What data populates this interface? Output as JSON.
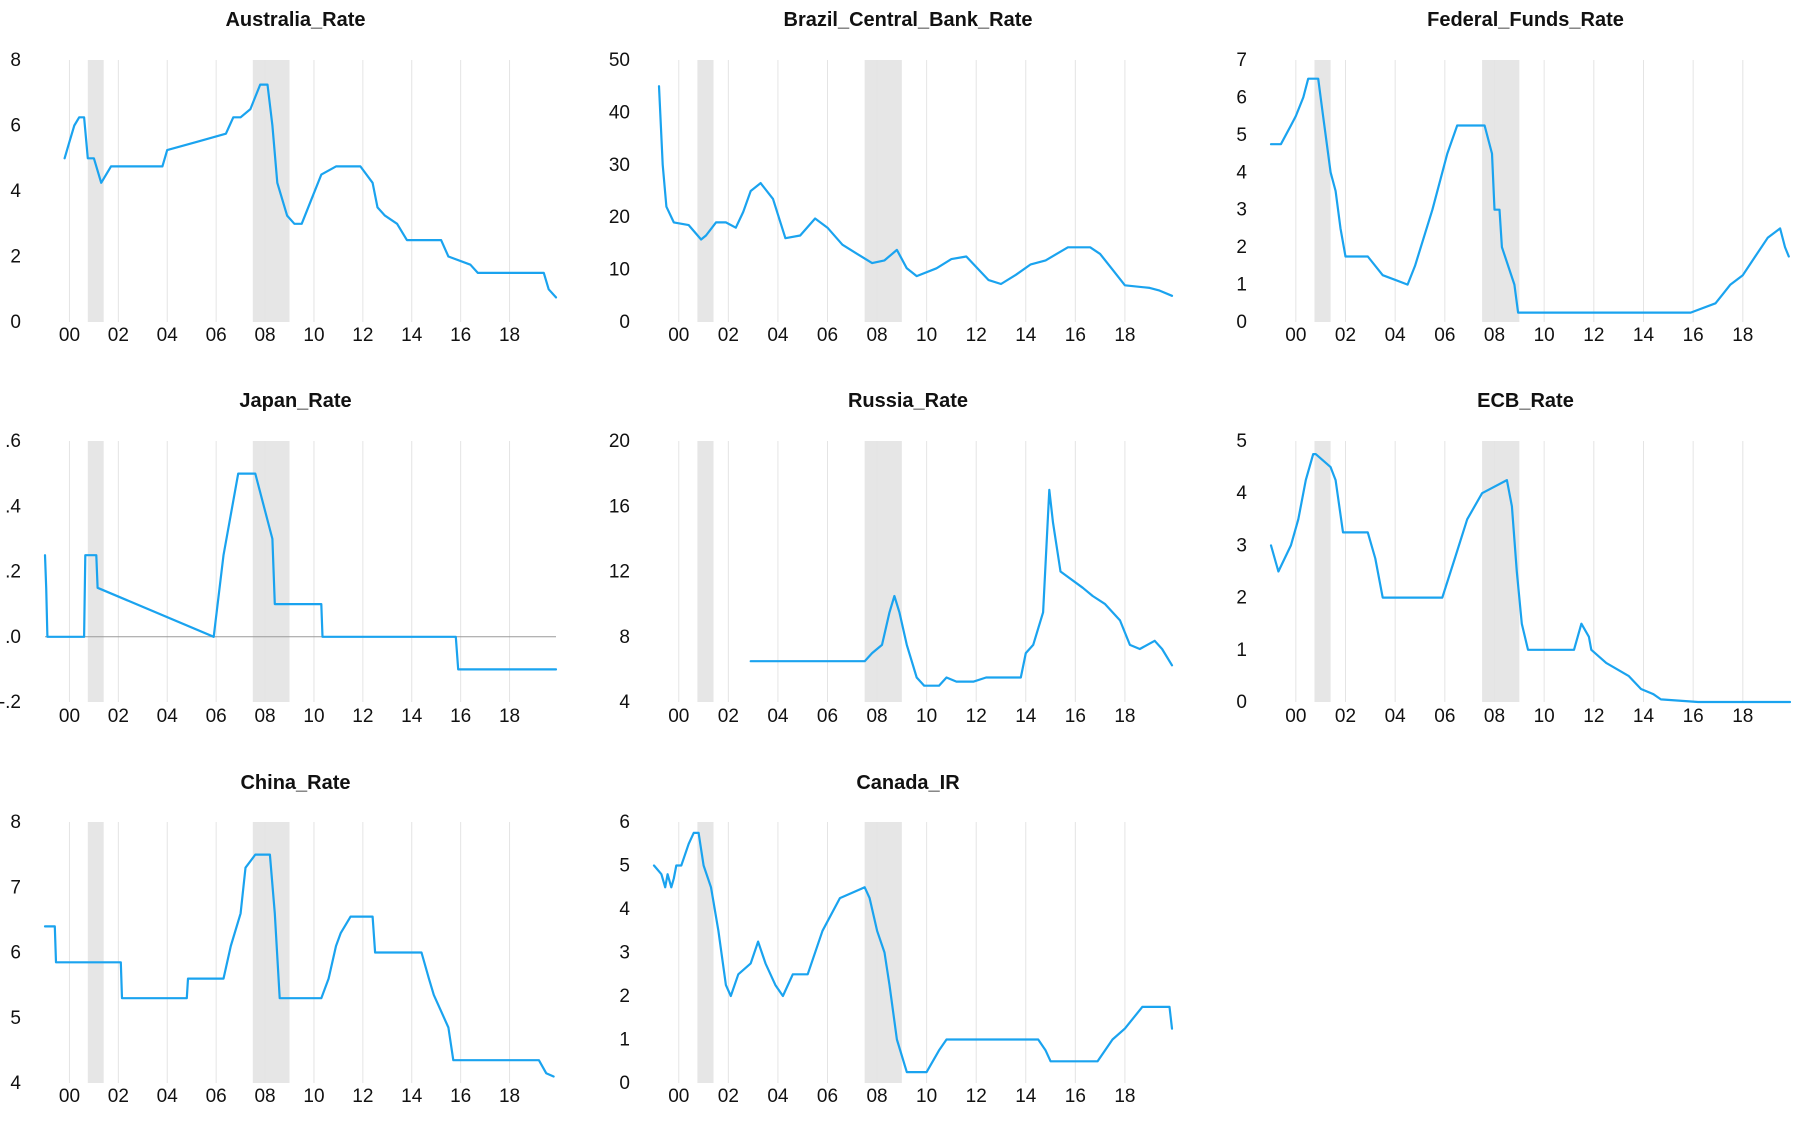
{
  "colors": {
    "series": "#1aa3ef",
    "recession": "#e6e6e6",
    "grid": "#e4e4e4",
    "zero_line": "#9a9a9a"
  },
  "chart_data": [
    {
      "type": "line",
      "title": "Australia_Rate",
      "xlim": [
        1999.0,
        2019.9
      ],
      "ylim": [
        0,
        8
      ],
      "yticks": [
        0,
        2,
        4,
        6,
        8
      ],
      "ytick_labels": [
        "0",
        "2",
        "4",
        "6",
        "8"
      ],
      "xticks": [
        2000,
        2002,
        2004,
        2006,
        2008,
        2010,
        2012,
        2014,
        2016,
        2018
      ],
      "xtick_labels": [
        "00",
        "02",
        "04",
        "06",
        "08",
        "10",
        "12",
        "14",
        "16",
        "18"
      ],
      "recessions": [
        [
          2000.75,
          2001.4
        ],
        [
          2007.5,
          2009.0
        ]
      ],
      "x": [
        1999.8,
        2000.0,
        2000.2,
        2000.4,
        2000.6,
        2000.75,
        2001.0,
        2001.3,
        2001.7,
        2002.4,
        2003.8,
        2004.0,
        2005.2,
        2006.4,
        2006.7,
        2007.0,
        2007.4,
        2007.8,
        2008.1,
        2008.3,
        2008.5,
        2008.9,
        2009.2,
        2009.5,
        2009.9,
        2010.3,
        2010.9,
        2011.9,
        2012.4,
        2012.6,
        2012.9,
        2013.4,
        2013.8,
        2015.2,
        2015.5,
        2016.4,
        2016.7,
        2019.4,
        2019.6,
        2019.9
      ],
      "values": [
        5.0,
        5.5,
        6.0,
        6.25,
        6.25,
        5.0,
        5.0,
        4.25,
        4.75,
        4.75,
        4.75,
        5.25,
        5.5,
        5.75,
        6.25,
        6.25,
        6.5,
        7.25,
        7.25,
        6.0,
        4.25,
        3.25,
        3.0,
        3.0,
        3.75,
        4.5,
        4.75,
        4.75,
        4.25,
        3.5,
        3.25,
        3.0,
        2.5,
        2.5,
        2.0,
        1.75,
        1.5,
        1.5,
        1.0,
        0.75
      ]
    },
    {
      "type": "line",
      "title": "Brazil_Central_Bank_Rate",
      "xlim": [
        1999.0,
        2019.9
      ],
      "ylim": [
        0,
        50
      ],
      "yticks": [
        0,
        10,
        20,
        30,
        40,
        50
      ],
      "ytick_labels": [
        "0",
        "10",
        "20",
        "30",
        "40",
        "50"
      ],
      "xticks": [
        2000,
        2002,
        2004,
        2006,
        2008,
        2010,
        2012,
        2014,
        2016,
        2018
      ],
      "xtick_labels": [
        "00",
        "02",
        "04",
        "06",
        "08",
        "10",
        "12",
        "14",
        "16",
        "18"
      ],
      "recessions": [
        [
          2000.75,
          2001.4
        ],
        [
          2007.5,
          2009.0
        ]
      ],
      "x": [
        1999.2,
        1999.35,
        1999.5,
        1999.8,
        2000.4,
        2000.9,
        2001.1,
        2001.5,
        2001.9,
        2002.3,
        2002.6,
        2002.9,
        2003.3,
        2003.8,
        2004.3,
        2004.9,
        2005.5,
        2006.0,
        2006.6,
        2007.2,
        2007.8,
        2008.3,
        2008.8,
        2009.2,
        2009.6,
        2010.4,
        2011.0,
        2011.6,
        2012.0,
        2012.5,
        2013.0,
        2013.6,
        2014.2,
        2014.8,
        2015.7,
        2016.6,
        2017.0,
        2017.5,
        2018.0,
        2019.0,
        2019.4,
        2019.9
      ],
      "values": [
        45.0,
        30.0,
        22.0,
        19.0,
        18.5,
        15.75,
        16.5,
        19.0,
        19.0,
        18.0,
        21.0,
        25.0,
        26.5,
        23.5,
        16.0,
        16.5,
        19.75,
        18.0,
        14.75,
        13.0,
        11.25,
        11.75,
        13.75,
        10.25,
        8.75,
        10.25,
        12.0,
        12.5,
        10.5,
        8.0,
        7.25,
        9.0,
        11.0,
        11.75,
        14.25,
        14.25,
        13.0,
        10.0,
        7.0,
        6.5,
        6.0,
        5.0
      ]
    },
    {
      "type": "line",
      "title": "Federal_Funds_Rate",
      "xlim": [
        1999.0,
        2019.9
      ],
      "ylim": [
        0,
        7
      ],
      "yticks": [
        0,
        1,
        2,
        3,
        4,
        5,
        6,
        7
      ],
      "ytick_labels": [
        "0",
        "1",
        "2",
        "3",
        "4",
        "5",
        "6",
        "7"
      ],
      "xticks": [
        2000,
        2002,
        2004,
        2006,
        2008,
        2010,
        2012,
        2014,
        2016,
        2018
      ],
      "xtick_labels": [
        "00",
        "02",
        "04",
        "06",
        "08",
        "10",
        "12",
        "14",
        "16",
        "18"
      ],
      "recessions": [
        [
          2000.75,
          2001.4
        ],
        [
          2007.5,
          2009.0
        ]
      ],
      "x": [
        1999.0,
        1999.4,
        1999.8,
        2000.0,
        2000.3,
        2000.5,
        2000.9,
        2001.1,
        2001.4,
        2001.6,
        2001.8,
        2002.0,
        2002.9,
        2003.5,
        2004.5,
        2004.8,
        2005.5,
        2006.1,
        2006.5,
        2007.6,
        2007.9,
        2008.0,
        2008.2,
        2008.3,
        2008.8,
        2008.95,
        2015.9,
        2016.9,
        2017.2,
        2017.5,
        2018.0,
        2018.5,
        2019.0,
        2019.5,
        2019.7,
        2019.85
      ],
      "values": [
        4.75,
        4.75,
        5.25,
        5.5,
        6.0,
        6.5,
        6.5,
        5.5,
        4.0,
        3.5,
        2.5,
        1.75,
        1.75,
        1.25,
        1.0,
        1.5,
        3.0,
        4.5,
        5.25,
        5.25,
        4.5,
        3.0,
        3.0,
        2.0,
        1.0,
        0.25,
        0.25,
        0.5,
        0.75,
        1.0,
        1.25,
        1.75,
        2.25,
        2.5,
        2.0,
        1.75
      ]
    },
    {
      "type": "line",
      "title": "Japan_Rate",
      "xlim": [
        1999.0,
        2019.9
      ],
      "ylim": [
        -0.2,
        0.6
      ],
      "yticks": [
        -0.2,
        0.0,
        0.2,
        0.4,
        0.6
      ],
      "ytick_labels": [
        "-.2",
        ".0",
        ".2",
        ".4",
        ".6"
      ],
      "xticks": [
        2000,
        2002,
        2004,
        2006,
        2008,
        2010,
        2012,
        2014,
        2016,
        2018
      ],
      "xtick_labels": [
        "00",
        "02",
        "04",
        "06",
        "08",
        "10",
        "12",
        "14",
        "16",
        "18"
      ],
      "recessions": [
        [
          2000.75,
          2001.4
        ],
        [
          2007.5,
          2009.0
        ]
      ],
      "zero_line": true,
      "x": [
        1999.0,
        1999.05,
        1999.1,
        2000.6,
        2000.65,
        2001.1,
        2001.15,
        2005.9,
        2006.3,
        2006.9,
        2007.6,
        2008.3,
        2008.4,
        2010.3,
        2010.35,
        2015.8,
        2015.9,
        2019.9
      ],
      "values": [
        0.25,
        0.15,
        0.0,
        0.0,
        0.25,
        0.25,
        0.15,
        0.0,
        0.25,
        0.5,
        0.5,
        0.3,
        0.1,
        0.1,
        0.0,
        0.0,
        -0.1,
        -0.1
      ]
    },
    {
      "type": "line",
      "title": "Russia_Rate",
      "xlim": [
        1999.0,
        2019.9
      ],
      "ylim": [
        4,
        20
      ],
      "yticks": [
        4,
        8,
        12,
        16,
        20
      ],
      "ytick_labels": [
        "4",
        "8",
        "12",
        "16",
        "20"
      ],
      "xticks": [
        2000,
        2002,
        2004,
        2006,
        2008,
        2010,
        2012,
        2014,
        2016,
        2018
      ],
      "xtick_labels": [
        "00",
        "02",
        "04",
        "06",
        "08",
        "10",
        "12",
        "14",
        "16",
        "18"
      ],
      "recessions": [
        [
          2000.75,
          2001.4
        ],
        [
          2007.5,
          2009.0
        ]
      ],
      "x": [
        2002.9,
        2007.5,
        2007.8,
        2008.2,
        2008.5,
        2008.7,
        2008.9,
        2009.2,
        2009.6,
        2009.9,
        2010.5,
        2010.8,
        2011.2,
        2011.9,
        2012.4,
        2013.8,
        2014.0,
        2014.3,
        2014.7,
        2014.95,
        2015.1,
        2015.4,
        2016.3,
        2016.7,
        2017.2,
        2017.8,
        2018.2,
        2018.6,
        2019.2,
        2019.5,
        2019.9
      ],
      "values": [
        6.5,
        6.5,
        7.0,
        7.5,
        9.5,
        10.5,
        9.5,
        7.5,
        5.5,
        5.0,
        5.0,
        5.5,
        5.25,
        5.25,
        5.5,
        5.5,
        7.0,
        7.5,
        9.5,
        17.0,
        15.0,
        12.0,
        11.0,
        10.5,
        10.0,
        9.0,
        7.5,
        7.25,
        7.75,
        7.25,
        6.25
      ]
    },
    {
      "type": "line",
      "title": "ECB_Rate",
      "xlim": [
        1999.0,
        2019.9
      ],
      "ylim": [
        0,
        5
      ],
      "yticks": [
        0,
        1,
        2,
        3,
        4,
        5
      ],
      "ytick_labels": [
        "0",
        "1",
        "2",
        "3",
        "4",
        "5"
      ],
      "xticks": [
        2000,
        2002,
        2004,
        2006,
        2008,
        2010,
        2012,
        2014,
        2016,
        2018
      ],
      "xtick_labels": [
        "00",
        "02",
        "04",
        "06",
        "08",
        "10",
        "12",
        "14",
        "16",
        "18"
      ],
      "recessions": [
        [
          2000.75,
          2001.4
        ],
        [
          2007.5,
          2009.0
        ]
      ],
      "x": [
        1999.0,
        1999.3,
        1999.8,
        2000.1,
        2000.4,
        2000.7,
        2000.8,
        2001.4,
        2001.6,
        2001.9,
        2002.9,
        2003.2,
        2003.5,
        2005.9,
        2006.4,
        2006.9,
        2007.5,
        2008.5,
        2008.7,
        2008.9,
        2009.1,
        2009.35,
        2011.2,
        2011.5,
        2011.8,
        2011.9,
        2012.5,
        2013.4,
        2013.9,
        2014.4,
        2014.7,
        2016.2,
        2019.9
      ],
      "values": [
        3.0,
        2.5,
        3.0,
        3.5,
        4.25,
        4.75,
        4.75,
        4.5,
        4.25,
        3.25,
        3.25,
        2.75,
        2.0,
        2.0,
        2.75,
        3.5,
        4.0,
        4.25,
        3.75,
        2.5,
        1.5,
        1.0,
        1.0,
        1.5,
        1.25,
        1.0,
        0.75,
        0.5,
        0.25,
        0.15,
        0.05,
        0.0,
        0.0
      ]
    },
    {
      "type": "line",
      "title": "China_Rate",
      "xlim": [
        1999.0,
        2019.9
      ],
      "ylim": [
        4,
        8
      ],
      "yticks": [
        4,
        5,
        6,
        7,
        8
      ],
      "ytick_labels": [
        "4",
        "5",
        "6",
        "7",
        "8"
      ],
      "xticks": [
        2000,
        2002,
        2004,
        2006,
        2008,
        2010,
        2012,
        2014,
        2016,
        2018
      ],
      "xtick_labels": [
        "00",
        "02",
        "04",
        "06",
        "08",
        "10",
        "12",
        "14",
        "16",
        "18"
      ],
      "recessions": [
        [
          2000.75,
          2001.4
        ],
        [
          2007.5,
          2009.0
        ]
      ],
      "x": [
        1999.0,
        1999.4,
        1999.45,
        2002.1,
        2002.15,
        2004.8,
        2004.85,
        2006.3,
        2006.6,
        2007.0,
        2007.2,
        2007.6,
        2008.2,
        2008.4,
        2008.6,
        2010.3,
        2010.6,
        2010.9,
        2011.1,
        2011.5,
        2012.4,
        2012.5,
        2014.4,
        2014.7,
        2014.9,
        2015.2,
        2015.5,
        2015.7,
        2016.4,
        2019.2,
        2019.5,
        2019.8
      ],
      "values": [
        6.4,
        6.4,
        5.85,
        5.85,
        5.3,
        5.3,
        5.6,
        5.6,
        6.1,
        6.6,
        7.3,
        7.5,
        7.5,
        6.6,
        5.3,
        5.3,
        5.6,
        6.1,
        6.3,
        6.55,
        6.55,
        6.0,
        6.0,
        5.6,
        5.35,
        5.1,
        4.85,
        4.35,
        4.35,
        4.35,
        4.15,
        4.1
      ]
    },
    {
      "type": "line",
      "title": "Canada_IR",
      "xlim": [
        1999.0,
        2019.9
      ],
      "ylim": [
        0,
        6
      ],
      "yticks": [
        0,
        1,
        2,
        3,
        4,
        5,
        6
      ],
      "ytick_labels": [
        "0",
        "1",
        "2",
        "3",
        "4",
        "5",
        "6"
      ],
      "xticks": [
        2000,
        2002,
        2004,
        2006,
        2008,
        2010,
        2012,
        2014,
        2016,
        2018
      ],
      "xtick_labels": [
        "00",
        "02",
        "04",
        "06",
        "08",
        "10",
        "12",
        "14",
        "16",
        "18"
      ],
      "recessions": [
        [
          2000.75,
          2001.4
        ],
        [
          2007.5,
          2009.0
        ]
      ],
      "x": [
        1999.0,
        1999.3,
        1999.45,
        1999.55,
        1999.7,
        1999.8,
        1999.9,
        2000.1,
        2000.4,
        2000.6,
        2000.8,
        2001.0,
        2001.3,
        2001.6,
        2001.9,
        2002.1,
        2002.4,
        2002.9,
        2003.2,
        2003.5,
        2003.9,
        2004.2,
        2004.6,
        2005.2,
        2005.8,
        2006.5,
        2007.5,
        2007.7,
        2008.0,
        2008.3,
        2008.5,
        2008.8,
        2009.2,
        2010.0,
        2010.5,
        2010.8,
        2014.5,
        2014.8,
        2015.0,
        2015.5,
        2016.9,
        2017.5,
        2018.0,
        2018.7,
        2019.8,
        2019.9
      ],
      "values": [
        5.0,
        4.8,
        4.5,
        4.8,
        4.5,
        4.7,
        5.0,
        5.0,
        5.5,
        5.75,
        5.75,
        5.0,
        4.5,
        3.5,
        2.25,
        2.0,
        2.5,
        2.75,
        3.25,
        2.75,
        2.25,
        2.0,
        2.5,
        2.5,
        3.5,
        4.25,
        4.5,
        4.25,
        3.5,
        3.0,
        2.25,
        1.0,
        0.25,
        0.25,
        0.75,
        1.0,
        1.0,
        0.75,
        0.5,
        0.5,
        0.5,
        1.0,
        1.25,
        1.75,
        1.75,
        1.25
      ]
    }
  ]
}
